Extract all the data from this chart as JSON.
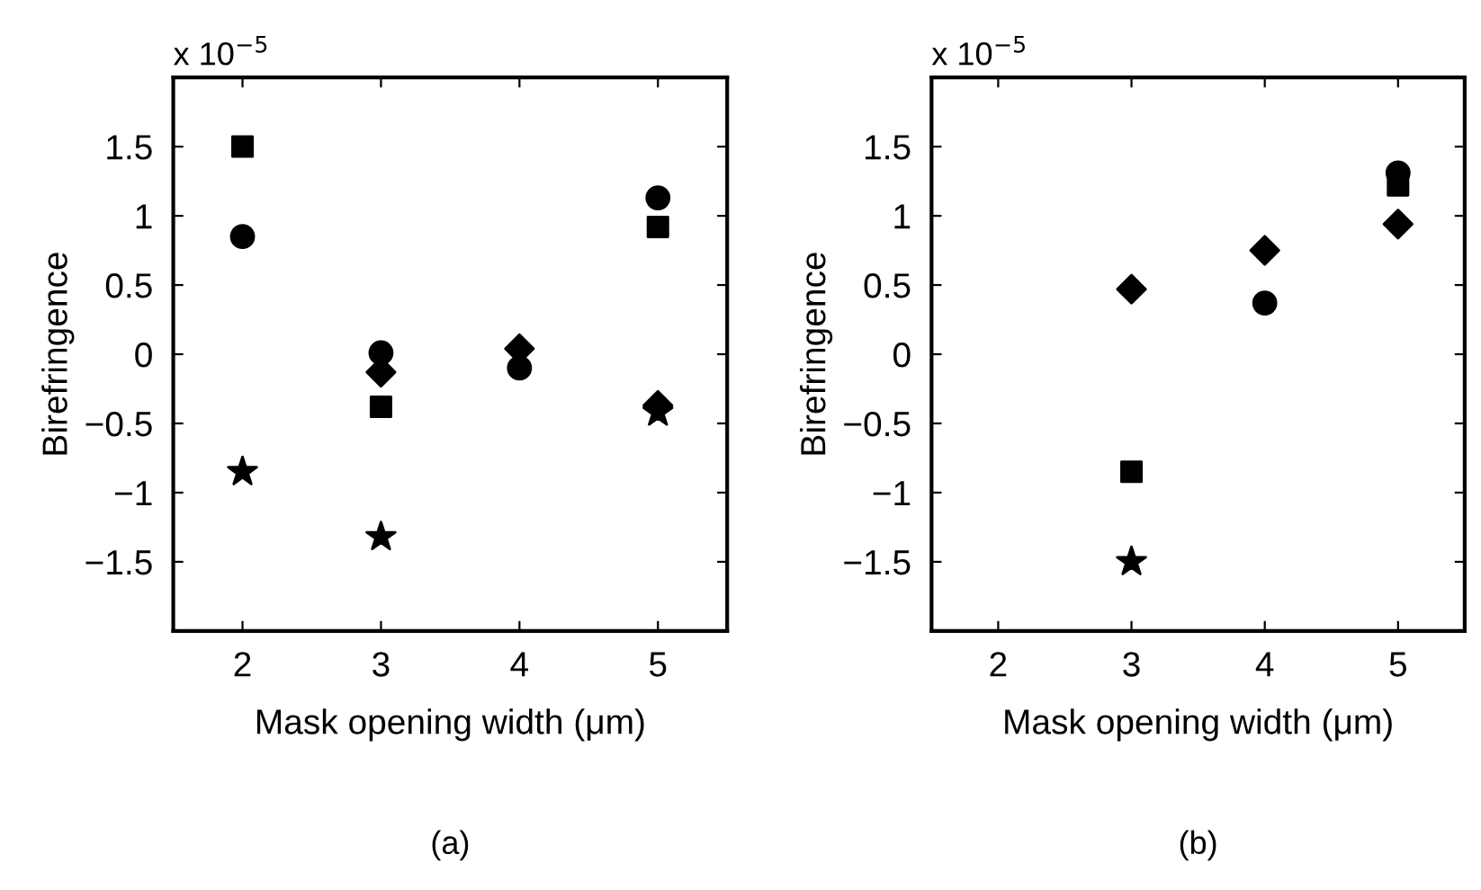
{
  "chart_data": [
    {
      "type": "scatter",
      "xlabel": "Mask opening width (μm)",
      "ylabel": "Birefringence",
      "xlim": [
        1.5,
        5.5
      ],
      "xticks": [
        2,
        3,
        4,
        5
      ],
      "ylim": [
        -2,
        2
      ],
      "yticks": [
        -1.5,
        -1,
        -0.5,
        0,
        0.5,
        1,
        1.5
      ],
      "grid": false,
      "legend": false,
      "annotations": [
        "x 10$^{−5}$",
        "(a)"
      ],
      "series": [
        {
          "marker": "circle",
          "color": "#000000",
          "x": [
            2,
            3,
            4,
            5
          ],
          "values": [
            0.85,
            0.01,
            -0.1,
            1.13
          ]
        },
        {
          "marker": "square",
          "color": "#000000",
          "x": [
            2,
            3,
            5
          ],
          "values": [
            1.5,
            -0.38,
            0.92
          ]
        },
        {
          "marker": "diamond",
          "color": "#000000",
          "x": [
            3,
            4,
            5
          ],
          "values": [
            -0.13,
            0.04,
            -0.37
          ]
        },
        {
          "marker": "star",
          "color": "#000000",
          "x": [
            2,
            3,
            5
          ],
          "values": [
            -0.85,
            -1.32,
            -0.42
          ]
        }
      ]
    },
    {
      "type": "scatter",
      "xlabel": "Mask opening width (μm)",
      "ylabel": "Birefringence",
      "xlim": [
        1.5,
        5.5
      ],
      "xticks": [
        2,
        3,
        4,
        5
      ],
      "ylim": [
        -2,
        2
      ],
      "yticks": [
        -1.5,
        -1,
        -0.5,
        0,
        0.5,
        1,
        1.5
      ],
      "grid": false,
      "legend": false,
      "annotations": [
        "x 10$^{−5}$",
        "(b)"
      ],
      "series": [
        {
          "marker": "circle",
          "color": "#000000",
          "x": [
            4,
            5
          ],
          "values": [
            0.37,
            1.31
          ]
        },
        {
          "marker": "square",
          "color": "#000000",
          "x": [
            3,
            5
          ],
          "values": [
            -0.85,
            1.22
          ]
        },
        {
          "marker": "diamond",
          "color": "#000000",
          "x": [
            3,
            4,
            5
          ],
          "values": [
            0.47,
            0.75,
            0.94
          ]
        },
        {
          "marker": "star",
          "color": "#000000",
          "x": [
            3
          ],
          "values": [
            -1.5
          ]
        }
      ]
    }
  ]
}
